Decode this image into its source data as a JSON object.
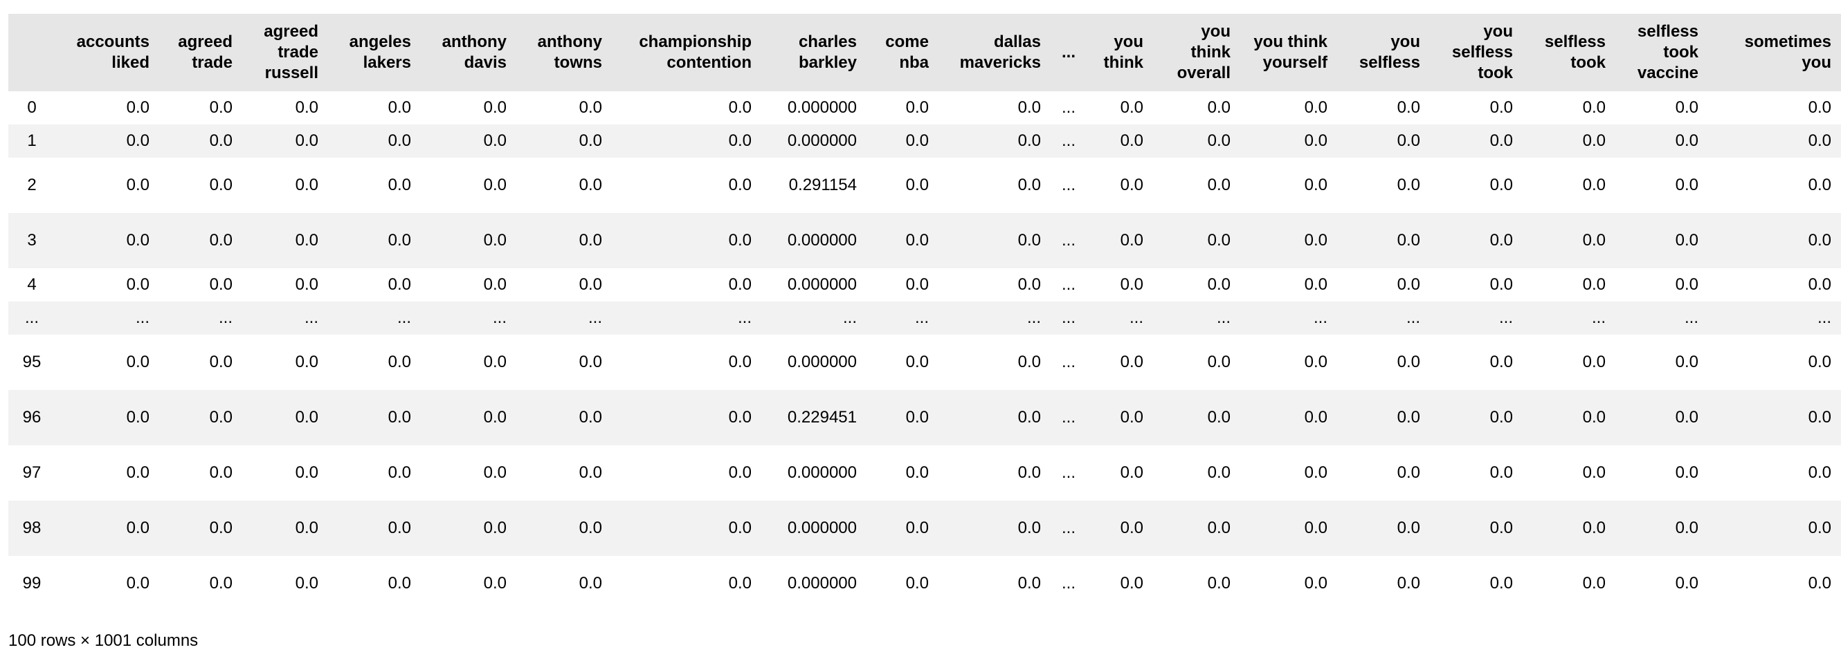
{
  "table": {
    "index_header": "",
    "columns": [
      "accounts liked",
      "agreed trade",
      "agreed trade russell",
      "angeles lakers",
      "anthony davis",
      "anthony towns",
      "championship contention",
      "charles barkley",
      "come nba",
      "dallas mavericks",
      "...",
      "you think",
      "you think overall",
      "you think yourself",
      "you selfless",
      "you selfless took",
      "selfless took",
      "selfless took vaccine",
      "sometimes you"
    ],
    "rows": [
      {
        "index": "0",
        "tall": false,
        "cells": [
          "0.0",
          "0.0",
          "0.0",
          "0.0",
          "0.0",
          "0.0",
          "0.0",
          "0.000000",
          "0.0",
          "0.0",
          "...",
          "0.0",
          "0.0",
          "0.0",
          "0.0",
          "0.0",
          "0.0",
          "0.0",
          "0.0"
        ]
      },
      {
        "index": "1",
        "tall": false,
        "cells": [
          "0.0",
          "0.0",
          "0.0",
          "0.0",
          "0.0",
          "0.0",
          "0.0",
          "0.000000",
          "0.0",
          "0.0",
          "...",
          "0.0",
          "0.0",
          "0.0",
          "0.0",
          "0.0",
          "0.0",
          "0.0",
          "0.0"
        ]
      },
      {
        "index": "2",
        "tall": true,
        "cells": [
          "0.0",
          "0.0",
          "0.0",
          "0.0",
          "0.0",
          "0.0",
          "0.0",
          "0.291154",
          "0.0",
          "0.0",
          "...",
          "0.0",
          "0.0",
          "0.0",
          "0.0",
          "0.0",
          "0.0",
          "0.0",
          "0.0"
        ]
      },
      {
        "index": "3",
        "tall": true,
        "cells": [
          "0.0",
          "0.0",
          "0.0",
          "0.0",
          "0.0",
          "0.0",
          "0.0",
          "0.000000",
          "0.0",
          "0.0",
          "...",
          "0.0",
          "0.0",
          "0.0",
          "0.0",
          "0.0",
          "0.0",
          "0.0",
          "0.0"
        ]
      },
      {
        "index": "4",
        "tall": false,
        "cells": [
          "0.0",
          "0.0",
          "0.0",
          "0.0",
          "0.0",
          "0.0",
          "0.0",
          "0.000000",
          "0.0",
          "0.0",
          "...",
          "0.0",
          "0.0",
          "0.0",
          "0.0",
          "0.0",
          "0.0",
          "0.0",
          "0.0"
        ]
      },
      {
        "index": "...",
        "tall": false,
        "cells": [
          "...",
          "...",
          "...",
          "...",
          "...",
          "...",
          "...",
          "...",
          "...",
          "...",
          "...",
          "...",
          "...",
          "...",
          "...",
          "...",
          "...",
          "...",
          "..."
        ]
      },
      {
        "index": "95",
        "tall": true,
        "cells": [
          "0.0",
          "0.0",
          "0.0",
          "0.0",
          "0.0",
          "0.0",
          "0.0",
          "0.000000",
          "0.0",
          "0.0",
          "...",
          "0.0",
          "0.0",
          "0.0",
          "0.0",
          "0.0",
          "0.0",
          "0.0",
          "0.0"
        ]
      },
      {
        "index": "96",
        "tall": true,
        "cells": [
          "0.0",
          "0.0",
          "0.0",
          "0.0",
          "0.0",
          "0.0",
          "0.0",
          "0.229451",
          "0.0",
          "0.0",
          "...",
          "0.0",
          "0.0",
          "0.0",
          "0.0",
          "0.0",
          "0.0",
          "0.0",
          "0.0"
        ]
      },
      {
        "index": "97",
        "tall": true,
        "cells": [
          "0.0",
          "0.0",
          "0.0",
          "0.0",
          "0.0",
          "0.0",
          "0.0",
          "0.000000",
          "0.0",
          "0.0",
          "...",
          "0.0",
          "0.0",
          "0.0",
          "0.0",
          "0.0",
          "0.0",
          "0.0",
          "0.0"
        ]
      },
      {
        "index": "98",
        "tall": true,
        "cells": [
          "0.0",
          "0.0",
          "0.0",
          "0.0",
          "0.0",
          "0.0",
          "0.0",
          "0.000000",
          "0.0",
          "0.0",
          "...",
          "0.0",
          "0.0",
          "0.0",
          "0.0",
          "0.0",
          "0.0",
          "0.0",
          "0.0"
        ]
      },
      {
        "index": "99",
        "tall": true,
        "cells": [
          "0.0",
          "0.0",
          "0.0",
          "0.0",
          "0.0",
          "0.0",
          "0.0",
          "0.000000",
          "0.0",
          "0.0",
          "...",
          "0.0",
          "0.0",
          "0.0",
          "0.0",
          "0.0",
          "0.0",
          "0.0",
          "0.0"
        ]
      }
    ]
  },
  "summary": "100 rows × 1001 columns",
  "colors": {
    "header_bg": "#e6e6e6",
    "stripe_bg": "#f2f2f2",
    "text": "#000000"
  }
}
